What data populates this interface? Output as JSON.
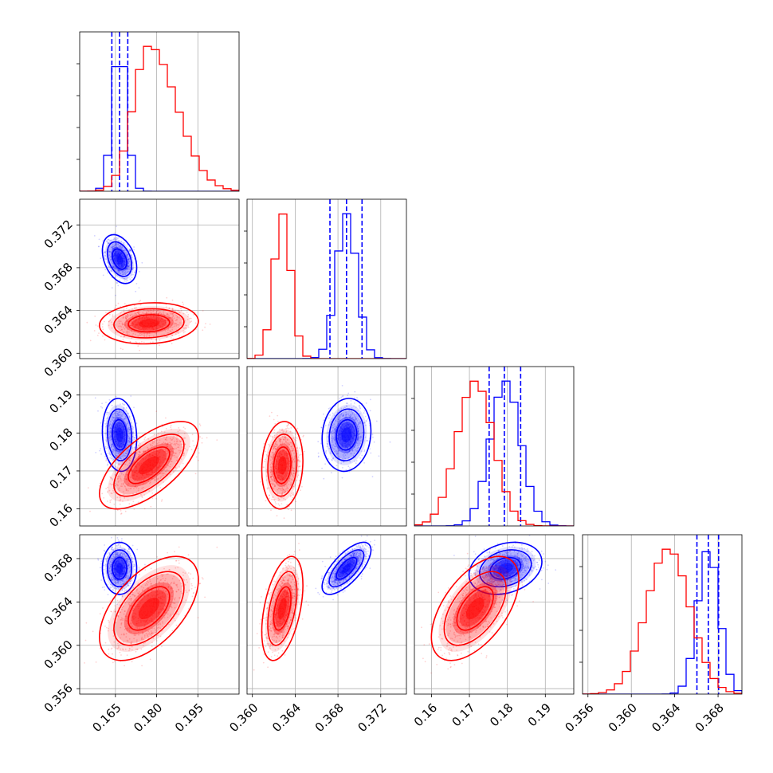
{
  "colors": {
    "blue": "#0000ff",
    "red": "#ff0000",
    "grid": "#b0b0b0",
    "frame": "#000000"
  },
  "chart_data": {
    "type": "corner",
    "title": "",
    "parameter_count": 4,
    "grid": true,
    "params": [
      {
        "index": 0,
        "range": [
          0.152,
          0.21
        ],
        "ticks": [
          0.165,
          0.18,
          0.195
        ],
        "tick_labels": [
          "0.165",
          "0.180",
          "0.195"
        ]
      },
      {
        "index": 1,
        "range": [
          0.3595,
          0.3744
        ],
        "ticks": [
          0.36,
          0.364,
          0.368,
          0.372
        ],
        "tick_labels": [
          "0.360",
          "0.364",
          "0.368",
          "0.372"
        ]
      },
      {
        "index": 2,
        "range": [
          0.1555,
          0.1975
        ],
        "ticks": [
          0.16,
          0.17,
          0.18,
          0.19
        ],
        "tick_labels": [
          "0.16",
          "0.17",
          "0.18",
          "0.19"
        ]
      },
      {
        "index": 3,
        "range": [
          0.3555,
          0.3702
        ],
        "ticks": [
          0.356,
          0.36,
          0.364,
          0.368
        ],
        "tick_labels": [
          "0.356",
          "0.360",
          "0.364",
          "0.368"
        ]
      }
    ],
    "series": [
      {
        "color": "#0000ff",
        "means": [
          0.1665,
          0.3688,
          0.1795,
          0.3671
        ],
        "sigmas": [
          0.0026,
          0.00095,
          0.004,
          0.001
        ],
        "correlations": {
          "0-1": -0.35,
          "0-2": -0.1,
          "0-3": 0.0,
          "1-2": 0.1,
          "1-3": 0.7,
          "2-3": 0.25
        },
        "quantiles": [
          [
            0.1637,
            0.1665,
            0.1695
          ],
          [
            0.36725,
            0.3688,
            0.37025
          ],
          [
            0.1752,
            0.1792,
            0.1835
          ],
          [
            0.36605,
            0.3671,
            0.36805
          ]
        ]
      },
      {
        "color": "#ff0000",
        "means": [
          0.1772,
          0.3628,
          0.1715,
          0.3634
        ],
        "sigmas": [
          0.0075,
          0.0008,
          0.0048,
          0.002
        ],
        "correlations": {
          "0-1": 0.1,
          "0-2": 0.65,
          "0-3": 0.55,
          "1-2": 0.1,
          "1-3": 0.45,
          "2-3": 0.55
        },
        "quantiles": []
      }
    ]
  }
}
